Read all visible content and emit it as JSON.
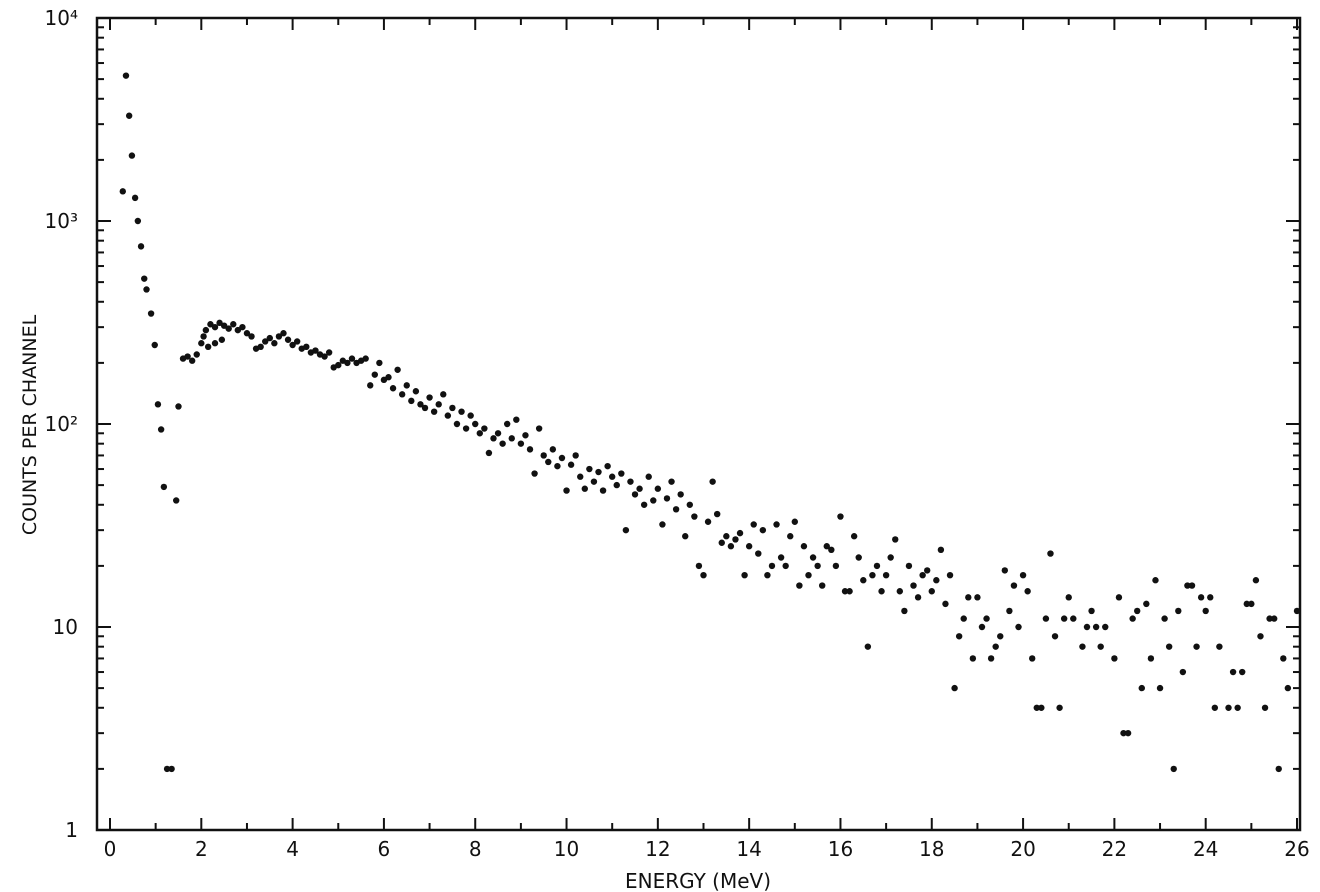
{
  "chart_data": {
    "type": "scatter",
    "title": "",
    "xlabel": "ENERGY (MeV)",
    "ylabel": "COUNTS PER CHANNEL",
    "xlim": [
      0,
      26
    ],
    "ylim": [
      1,
      10000
    ],
    "yscale": "log",
    "grid": false,
    "x_ticks": [
      "0",
      "2",
      "4",
      "6",
      "8",
      "10",
      "12",
      "14",
      "16",
      "18",
      "20",
      "22",
      "24",
      "26"
    ],
    "y_ticks": [
      {
        "value": 1,
        "label": "1"
      },
      {
        "value": 10,
        "label": "10"
      },
      {
        "value": 100,
        "label": "10²"
      },
      {
        "value": 1000,
        "label": "10³"
      },
      {
        "value": 10000,
        "label": "10⁴"
      }
    ],
    "marker_color": "#111111",
    "points": [
      [
        0.28,
        1400
      ],
      [
        0.35,
        5200
      ],
      [
        0.42,
        3300
      ],
      [
        0.48,
        2100
      ],
      [
        0.55,
        1300
      ],
      [
        0.61,
        1000
      ],
      [
        0.68,
        750
      ],
      [
        0.75,
        520
      ],
      [
        0.8,
        460
      ],
      [
        0.9,
        350
      ],
      [
        0.98,
        245
      ],
      [
        1.05,
        125
      ],
      [
        1.12,
        94
      ],
      [
        1.18,
        49
      ],
      [
        1.25,
        2
      ],
      [
        1.35,
        2
      ],
      [
        1.45,
        42
      ],
      [
        1.5,
        122
      ],
      [
        1.6,
        210
      ],
      [
        1.7,
        215
      ],
      [
        1.8,
        205
      ],
      [
        1.9,
        220
      ],
      [
        2.0,
        250
      ],
      [
        2.05,
        270
      ],
      [
        2.1,
        290
      ],
      [
        2.15,
        240
      ],
      [
        2.2,
        310
      ],
      [
        2.3,
        300
      ],
      [
        2.3,
        250
      ],
      [
        2.4,
        315
      ],
      [
        2.45,
        260
      ],
      [
        2.5,
        305
      ],
      [
        2.6,
        295
      ],
      [
        2.7,
        310
      ],
      [
        2.8,
        290
      ],
      [
        2.9,
        300
      ],
      [
        3.0,
        280
      ],
      [
        3.1,
        270
      ],
      [
        3.2,
        235
      ],
      [
        3.3,
        240
      ],
      [
        3.4,
        255
      ],
      [
        3.5,
        265
      ],
      [
        3.6,
        250
      ],
      [
        3.7,
        270
      ],
      [
        3.8,
        280
      ],
      [
        3.9,
        260
      ],
      [
        4.0,
        245
      ],
      [
        4.1,
        255
      ],
      [
        4.2,
        235
      ],
      [
        4.3,
        240
      ],
      [
        4.4,
        225
      ],
      [
        4.5,
        230
      ],
      [
        4.6,
        220
      ],
      [
        4.7,
        215
      ],
      [
        4.8,
        225
      ],
      [
        4.9,
        190
      ],
      [
        5.0,
        195
      ],
      [
        5.1,
        205
      ],
      [
        5.2,
        200
      ],
      [
        5.3,
        210
      ],
      [
        5.4,
        200
      ],
      [
        5.5,
        205
      ],
      [
        5.6,
        210
      ],
      [
        5.7,
        155
      ],
      [
        5.8,
        175
      ],
      [
        5.9,
        200
      ],
      [
        6.0,
        165
      ],
      [
        6.1,
        170
      ],
      [
        6.2,
        150
      ],
      [
        6.3,
        185
      ],
      [
        6.4,
        140
      ],
      [
        6.5,
        155
      ],
      [
        6.6,
        130
      ],
      [
        6.7,
        145
      ],
      [
        6.8,
        125
      ],
      [
        6.9,
        120
      ],
      [
        7.0,
        135
      ],
      [
        7.1,
        115
      ],
      [
        7.2,
        125
      ],
      [
        7.3,
        140
      ],
      [
        7.4,
        110
      ],
      [
        7.5,
        120
      ],
      [
        7.6,
        100
      ],
      [
        7.7,
        115
      ],
      [
        7.8,
        95
      ],
      [
        7.9,
        110
      ],
      [
        8.0,
        100
      ],
      [
        8.1,
        90
      ],
      [
        8.2,
        95
      ],
      [
        8.3,
        72
      ],
      [
        8.4,
        85
      ],
      [
        8.5,
        90
      ],
      [
        8.6,
        80
      ],
      [
        8.7,
        100
      ],
      [
        8.8,
        85
      ],
      [
        8.9,
        105
      ],
      [
        9.0,
        80
      ],
      [
        9.1,
        88
      ],
      [
        9.2,
        75
      ],
      [
        9.3,
        57
      ],
      [
        9.4,
        95
      ],
      [
        9.5,
        70
      ],
      [
        9.6,
        65
      ],
      [
        9.7,
        75
      ],
      [
        9.8,
        62
      ],
      [
        9.9,
        68
      ],
      [
        10.0,
        47
      ],
      [
        10.1,
        63
      ],
      [
        10.2,
        70
      ],
      [
        10.3,
        55
      ],
      [
        10.4,
        48
      ],
      [
        10.5,
        60
      ],
      [
        10.6,
        52
      ],
      [
        10.7,
        58
      ],
      [
        10.8,
        47
      ],
      [
        10.9,
        62
      ],
      [
        11.0,
        55
      ],
      [
        11.1,
        50
      ],
      [
        11.2,
        57
      ],
      [
        11.3,
        30
      ],
      [
        11.4,
        52
      ],
      [
        11.5,
        45
      ],
      [
        11.6,
        48
      ],
      [
        11.7,
        40
      ],
      [
        11.8,
        55
      ],
      [
        11.9,
        42
      ],
      [
        12.0,
        48
      ],
      [
        12.1,
        32
      ],
      [
        12.2,
        43
      ],
      [
        12.3,
        52
      ],
      [
        12.4,
        38
      ],
      [
        12.5,
        45
      ],
      [
        12.6,
        28
      ],
      [
        12.7,
        40
      ],
      [
        12.8,
        35
      ],
      [
        12.9,
        20
      ],
      [
        13.0,
        18
      ],
      [
        13.1,
        33
      ],
      [
        13.2,
        52
      ],
      [
        13.3,
        36
      ],
      [
        13.4,
        26
      ],
      [
        13.5,
        28
      ],
      [
        13.6,
        25
      ],
      [
        13.7,
        27
      ],
      [
        13.8,
        29
      ],
      [
        13.9,
        18
      ],
      [
        14.0,
        25
      ],
      [
        14.1,
        32
      ],
      [
        14.2,
        23
      ],
      [
        14.3,
        30
      ],
      [
        14.4,
        18
      ],
      [
        14.5,
        20
      ],
      [
        14.6,
        32
      ],
      [
        14.7,
        22
      ],
      [
        14.8,
        20
      ],
      [
        14.9,
        28
      ],
      [
        15.0,
        33
      ],
      [
        15.1,
        16
      ],
      [
        15.2,
        25
      ],
      [
        15.3,
        18
      ],
      [
        15.4,
        22
      ],
      [
        15.5,
        20
      ],
      [
        15.6,
        16
      ],
      [
        15.7,
        25
      ],
      [
        15.8,
        24
      ],
      [
        15.9,
        20
      ],
      [
        16.0,
        35
      ],
      [
        16.1,
        15
      ],
      [
        16.2,
        15
      ],
      [
        16.3,
        28
      ],
      [
        16.4,
        22
      ],
      [
        16.5,
        17
      ],
      [
        16.6,
        8
      ],
      [
        16.7,
        18
      ],
      [
        16.8,
        20
      ],
      [
        16.9,
        15
      ],
      [
        17.0,
        18
      ],
      [
        17.1,
        22
      ],
      [
        17.2,
        27
      ],
      [
        17.3,
        15
      ],
      [
        17.4,
        12
      ],
      [
        17.5,
        20
      ],
      [
        17.6,
        16
      ],
      [
        17.7,
        14
      ],
      [
        17.8,
        18
      ],
      [
        17.9,
        19
      ],
      [
        18.0,
        15
      ],
      [
        18.1,
        17
      ],
      [
        18.2,
        24
      ],
      [
        18.3,
        13
      ],
      [
        18.4,
        18
      ],
      [
        18.5,
        5
      ],
      [
        18.6,
        9
      ],
      [
        18.7,
        11
      ],
      [
        18.8,
        14
      ],
      [
        18.9,
        7
      ],
      [
        19.0,
        14
      ],
      [
        19.1,
        10
      ],
      [
        19.2,
        11
      ],
      [
        19.3,
        7
      ],
      [
        19.4,
        8
      ],
      [
        19.5,
        9
      ],
      [
        19.6,
        19
      ],
      [
        19.7,
        12
      ],
      [
        19.8,
        16
      ],
      [
        19.9,
        10
      ],
      [
        20.0,
        18
      ],
      [
        20.1,
        15
      ],
      [
        20.2,
        7
      ],
      [
        20.3,
        4
      ],
      [
        20.4,
        4
      ],
      [
        20.5,
        11
      ],
      [
        20.6,
        23
      ],
      [
        20.7,
        9
      ],
      [
        20.8,
        4
      ],
      [
        20.9,
        11
      ],
      [
        21.0,
        14
      ],
      [
        21.1,
        11
      ],
      [
        21.3,
        8
      ],
      [
        21.4,
        10
      ],
      [
        21.5,
        12
      ],
      [
        21.6,
        10
      ],
      [
        21.7,
        8
      ],
      [
        21.8,
        10
      ],
      [
        22.0,
        7
      ],
      [
        22.1,
        14
      ],
      [
        22.2,
        3
      ],
      [
        22.3,
        3
      ],
      [
        22.4,
        11
      ],
      [
        22.5,
        12
      ],
      [
        22.6,
        5
      ],
      [
        22.7,
        13
      ],
      [
        22.8,
        7
      ],
      [
        22.9,
        17
      ],
      [
        23.0,
        5
      ],
      [
        23.1,
        11
      ],
      [
        23.2,
        8
      ],
      [
        23.3,
        2
      ],
      [
        23.4,
        12
      ],
      [
        23.5,
        6
      ],
      [
        23.6,
        16
      ],
      [
        23.7,
        16
      ],
      [
        23.8,
        8
      ],
      [
        23.9,
        14
      ],
      [
        24.0,
        12
      ],
      [
        24.1,
        14
      ],
      [
        24.2,
        4
      ],
      [
        24.3,
        8
      ],
      [
        24.5,
        4
      ],
      [
        24.6,
        6
      ],
      [
        24.7,
        4
      ],
      [
        24.8,
        6
      ],
      [
        24.9,
        13
      ],
      [
        25.0,
        13
      ],
      [
        25.1,
        17
      ],
      [
        25.2,
        9
      ],
      [
        25.3,
        4
      ],
      [
        25.4,
        11
      ],
      [
        25.5,
        11
      ],
      [
        25.6,
        2
      ],
      [
        25.7,
        7
      ],
      [
        25.8,
        5
      ],
      [
        26.0,
        12
      ]
    ]
  }
}
